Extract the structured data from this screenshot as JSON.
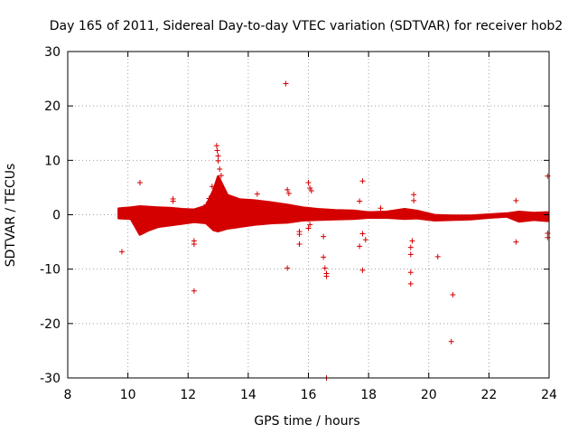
{
  "chart_data": {
    "type": "scatter",
    "title": "Day 165 of 2011, Sidereal Day-to-day VTEC variation (SDTVAR) for receiver hob2",
    "xlabel": "GPS time / hours",
    "ylabel": "SDTVAR / TECUs",
    "xlim": [
      8,
      24
    ],
    "ylim": [
      -30,
      30
    ],
    "xticks": [
      8,
      10,
      12,
      14,
      16,
      18,
      20,
      22,
      24
    ],
    "yticks": [
      -30,
      -20,
      -10,
      0,
      10,
      20,
      30
    ],
    "grid": true,
    "marker": "+",
    "series": [
      {
        "name": "SDTVAR",
        "color": "#d40000",
        "band": [
          {
            "x": 9.7,
            "lo": -0.6,
            "hi": 1.1
          },
          {
            "x": 10.1,
            "lo": -0.7,
            "hi": 1.3
          },
          {
            "x": 10.4,
            "lo": -3.6,
            "hi": 1.5
          },
          {
            "x": 10.7,
            "lo": -2.8,
            "hi": 1.4
          },
          {
            "x": 11.0,
            "lo": -2.2,
            "hi": 1.3
          },
          {
            "x": 11.4,
            "lo": -1.9,
            "hi": 1.2
          },
          {
            "x": 11.8,
            "lo": -1.6,
            "hi": 1.0
          },
          {
            "x": 12.2,
            "lo": -1.3,
            "hi": 0.9
          },
          {
            "x": 12.6,
            "lo": -1.5,
            "hi": 1.6
          },
          {
            "x": 12.85,
            "lo": -2.8,
            "hi": 4.5
          },
          {
            "x": 13.0,
            "lo": -3.0,
            "hi": 7.0
          },
          {
            "x": 13.3,
            "lo": -2.5,
            "hi": 3.6
          },
          {
            "x": 13.7,
            "lo": -2.2,
            "hi": 2.8
          },
          {
            "x": 14.2,
            "lo": -1.8,
            "hi": 2.6
          },
          {
            "x": 14.8,
            "lo": -1.5,
            "hi": 2.2
          },
          {
            "x": 15.3,
            "lo": -1.4,
            "hi": 1.8
          },
          {
            "x": 15.8,
            "lo": -1.0,
            "hi": 1.3
          },
          {
            "x": 16.3,
            "lo": -0.9,
            "hi": 1.0
          },
          {
            "x": 16.9,
            "lo": -0.8,
            "hi": 0.8
          },
          {
            "x": 17.5,
            "lo": -0.7,
            "hi": 0.7
          },
          {
            "x": 18.0,
            "lo": -0.5,
            "hi": 0.4
          },
          {
            "x": 18.6,
            "lo": -0.5,
            "hi": 0.5
          },
          {
            "x": 19.2,
            "lo": -0.7,
            "hi": 1.0
          },
          {
            "x": 19.6,
            "lo": -0.6,
            "hi": 0.7
          },
          {
            "x": 20.2,
            "lo": -1.0,
            "hi": -0.1
          },
          {
            "x": 20.8,
            "lo": -0.9,
            "hi": -0.2
          },
          {
            "x": 21.4,
            "lo": -0.8,
            "hi": -0.2
          },
          {
            "x": 22.0,
            "lo": -0.5,
            "hi": 0.0
          },
          {
            "x": 22.6,
            "lo": -0.3,
            "hi": 0.2
          },
          {
            "x": 23.0,
            "lo": -1.2,
            "hi": 0.5
          },
          {
            "x": 23.5,
            "lo": -0.9,
            "hi": 0.3
          },
          {
            "x": 23.95,
            "lo": -1.1,
            "hi": 0.4
          }
        ],
        "points": [
          [
            9.8,
            -6.8
          ],
          [
            10.4,
            5.9
          ],
          [
            11.5,
            2.9
          ],
          [
            11.5,
            2.5
          ],
          [
            12.2,
            -4.8
          ],
          [
            12.2,
            -5.4
          ],
          [
            12.2,
            -14.0
          ],
          [
            12.6,
            1.8
          ],
          [
            12.7,
            3.0
          ],
          [
            12.8,
            5.2
          ],
          [
            12.95,
            12.7
          ],
          [
            12.97,
            11.8
          ],
          [
            13.0,
            10.8
          ],
          [
            13.0,
            9.9
          ],
          [
            13.05,
            8.4
          ],
          [
            13.1,
            7.2
          ],
          [
            14.3,
            3.8
          ],
          [
            15.25,
            24.1
          ],
          [
            15.3,
            4.6
          ],
          [
            15.35,
            3.9
          ],
          [
            15.3,
            -9.8
          ],
          [
            15.7,
            -3.1
          ],
          [
            15.7,
            -3.6
          ],
          [
            15.7,
            -5.4
          ],
          [
            16.0,
            5.9
          ],
          [
            16.05,
            4.9
          ],
          [
            16.1,
            4.4
          ],
          [
            16.0,
            -2.5
          ],
          [
            16.05,
            -1.8
          ],
          [
            16.5,
            -4.0
          ],
          [
            16.5,
            -7.8
          ],
          [
            16.55,
            -9.8
          ],
          [
            16.6,
            -10.8
          ],
          [
            16.6,
            -11.3
          ],
          [
            16.6,
            -30.0
          ],
          [
            17.7,
            -5.8
          ],
          [
            17.8,
            -10.2
          ],
          [
            17.8,
            6.2
          ],
          [
            17.7,
            2.5
          ],
          [
            17.9,
            -4.6
          ],
          [
            17.8,
            -3.5
          ],
          [
            18.4,
            1.2
          ],
          [
            19.4,
            -6.0
          ],
          [
            19.4,
            -7.3
          ],
          [
            19.4,
            -10.6
          ],
          [
            19.4,
            -12.7
          ],
          [
            19.45,
            -4.8
          ],
          [
            19.5,
            3.7
          ],
          [
            19.5,
            2.6
          ],
          [
            20.3,
            -7.7
          ],
          [
            20.8,
            -14.7
          ],
          [
            20.75,
            -23.3
          ],
          [
            22.9,
            2.6
          ],
          [
            22.9,
            -5.0
          ],
          [
            23.95,
            7.1
          ],
          [
            23.95,
            -4.2
          ],
          [
            23.95,
            -3.4
          ]
        ]
      }
    ]
  }
}
